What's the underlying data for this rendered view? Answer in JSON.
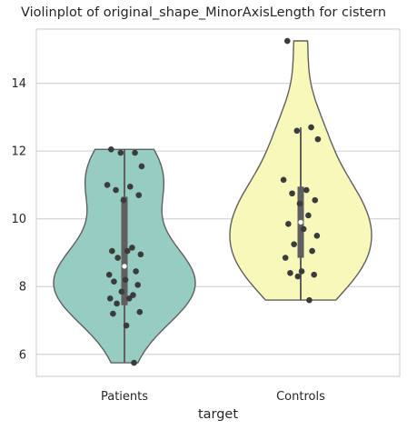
{
  "chart_data": {
    "type": "violin",
    "title": "Violinplot of original_shape_MinorAxisLength for cistern",
    "xlabel": "target",
    "ylabel": "",
    "categories": [
      "Patients",
      "Controls"
    ],
    "ylim": [
      5.35,
      15.6
    ],
    "yticks": [
      6,
      8,
      10,
      12,
      14
    ],
    "grid": true,
    "colors": {
      "Patients": "#96ccc2",
      "Controls": "#f8f8bb",
      "edge": "#5f5f5f",
      "point": "#3b3b3b",
      "grid": "#cccccc"
    },
    "series": [
      {
        "category": "Patients",
        "box": {
          "min": 5.75,
          "q1": 7.45,
          "median": 8.6,
          "q3": 10.65,
          "max": 12.05
        },
        "points": [
          12.05,
          11.95,
          11.95,
          11.55,
          11.0,
          10.95,
          10.85,
          10.7,
          10.55,
          9.15,
          9.05,
          9.05,
          8.95,
          8.85,
          8.45,
          8.35,
          8.2,
          8.15,
          8.05,
          7.85,
          7.75,
          7.65,
          7.65,
          7.5,
          7.25,
          7.2,
          6.85,
          5.75
        ]
      },
      {
        "category": "Controls",
        "box": {
          "min": 7.6,
          "q1": 8.85,
          "median": 9.9,
          "q3": 10.95,
          "max": 12.7
        },
        "points": [
          15.25,
          12.7,
          12.6,
          12.35,
          11.15,
          10.85,
          10.75,
          10.55,
          10.45,
          10.1,
          9.85,
          9.7,
          9.5,
          9.25,
          9.05,
          8.85,
          8.45,
          8.4,
          8.35,
          8.3,
          7.6
        ]
      }
    ]
  }
}
